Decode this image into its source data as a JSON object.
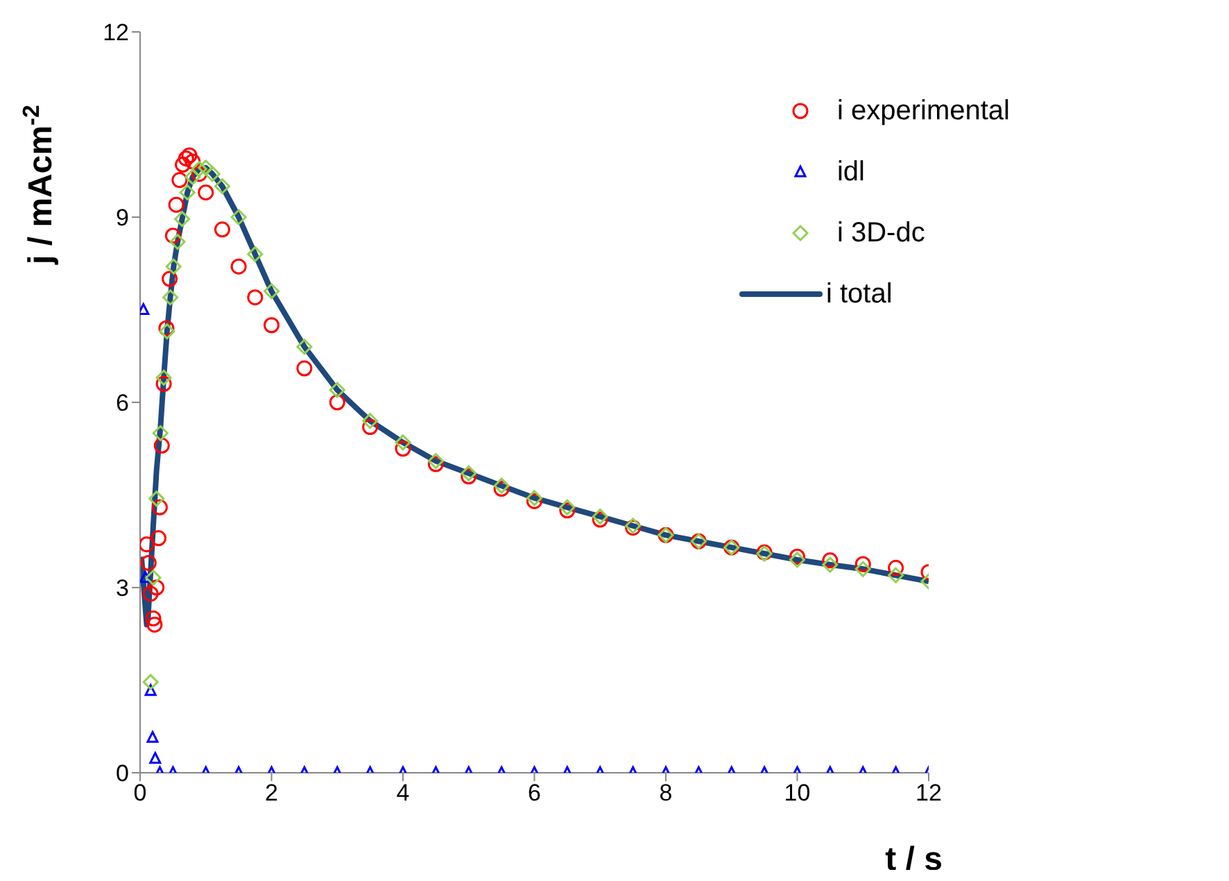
{
  "chart_data": {
    "type": "scatter",
    "xlabel": "t / s",
    "ylabel": "j / mAcm$^{-2}$",
    "xlim": [
      0,
      12
    ],
    "xticks": [
      0,
      2,
      4,
      6,
      8,
      10,
      12
    ],
    "ylim": [
      0,
      12
    ],
    "yticks": [
      0,
      3,
      6,
      9,
      12
    ],
    "grid": false,
    "legend": "top right",
    "series": [
      {
        "name": "i experimental",
        "color": "#ff0000",
        "marker": "circle",
        "x": [
          0.1,
          0.13,
          0.16,
          0.2,
          0.22,
          0.25,
          0.28,
          0.3,
          0.33,
          0.36,
          0.4,
          0.45,
          0.5,
          0.55,
          0.6,
          0.65,
          0.7,
          0.75,
          0.8,
          0.9,
          1.0,
          1.25,
          1.5,
          1.75,
          2,
          2.5,
          3,
          3.5,
          4,
          4.5,
          5,
          5.5,
          6,
          6.5,
          7,
          7.5,
          8,
          8.5,
          9,
          9.5,
          10,
          10.5,
          11,
          11.5,
          12
        ],
        "values": [
          3.7,
          3.4,
          2.9,
          2.5,
          2.4,
          3.0,
          3.8,
          4.3,
          5.3,
          6.3,
          7.2,
          8.0,
          8.7,
          9.2,
          9.6,
          9.85,
          9.95,
          10.0,
          9.9,
          9.7,
          9.4,
          8.8,
          8.2,
          7.7,
          7.25,
          6.55,
          6.0,
          5.6,
          5.25,
          5.0,
          4.8,
          4.6,
          4.4,
          4.25,
          4.1,
          3.97,
          3.85,
          3.75,
          3.65,
          3.57,
          3.5,
          3.44,
          3.38,
          3.32,
          3.25
        ]
      },
      {
        "name": "idl",
        "color": "#0000ff",
        "marker": "triangle",
        "x": [
          0.05,
          0.08,
          0.16,
          0.19,
          0.23,
          0.3,
          0.5,
          1,
          1.5,
          2,
          2.5,
          3,
          3.5,
          4,
          4.5,
          5,
          5.5,
          6,
          6.5,
          7,
          7.5,
          8,
          8.5,
          9,
          9.5,
          10,
          10.5,
          11,
          11.5,
          12
        ],
        "values": [
          7.5,
          3.16,
          1.33,
          0.57,
          0.23,
          0,
          0,
          0,
          0,
          0,
          0,
          0,
          0,
          0,
          0,
          0,
          0,
          0,
          0,
          0,
          0,
          0,
          0,
          0,
          0,
          0,
          0,
          0,
          0,
          0
        ]
      },
      {
        "name": "i 3D-dc",
        "color": "#92d050",
        "marker": "diamond",
        "x": [
          0.16,
          0.2,
          0.25,
          0.31,
          0.36,
          0.41,
          0.46,
          0.51,
          0.57,
          0.64,
          0.72,
          0.8,
          0.9,
          1.0,
          1.1,
          1.25,
          1.5,
          1.75,
          2,
          2.5,
          3,
          3.5,
          4,
          4.5,
          5,
          5.5,
          6,
          6.5,
          7,
          7.5,
          8,
          8.5,
          9,
          9.5,
          10,
          10.5,
          11,
          11.5,
          12
        ],
        "values": [
          1.47,
          3.16,
          4.44,
          5.5,
          6.4,
          7.15,
          7.7,
          8.2,
          8.6,
          8.97,
          9.4,
          9.65,
          9.78,
          9.8,
          9.7,
          9.5,
          9.0,
          8.4,
          7.8,
          6.9,
          6.2,
          5.7,
          5.35,
          5.05,
          4.85,
          4.65,
          4.45,
          4.3,
          4.15,
          4.0,
          3.85,
          3.75,
          3.65,
          3.55,
          3.45,
          3.37,
          3.3,
          3.2,
          3.1
        ]
      },
      {
        "name": "i total",
        "color": "#1f497d",
        "type": "line",
        "marker": "none",
        "x": [
          0.02,
          0.1,
          0.12,
          0.2,
          0.25,
          0.31,
          0.36,
          0.41,
          0.46,
          0.51,
          0.57,
          0.64,
          0.72,
          0.8,
          0.9,
          1.0,
          1.1,
          1.25,
          1.5,
          1.75,
          2,
          2.5,
          3,
          3.5,
          4,
          4.5,
          5,
          5.5,
          6,
          6.5,
          7,
          7.5,
          8,
          8.5,
          9,
          9.5,
          10,
          10.5,
          11,
          11.5,
          12
        ],
        "values": [
          3.5,
          2.4,
          2.5,
          4.0,
          4.9,
          5.6,
          6.4,
          7.15,
          7.7,
          8.2,
          8.6,
          8.97,
          9.4,
          9.65,
          9.78,
          9.8,
          9.7,
          9.5,
          9.0,
          8.4,
          7.8,
          6.9,
          6.2,
          5.7,
          5.35,
          5.05,
          4.85,
          4.65,
          4.45,
          4.3,
          4.15,
          4.0,
          3.85,
          3.75,
          3.65,
          3.55,
          3.45,
          3.37,
          3.3,
          3.2,
          3.1
        ]
      }
    ]
  }
}
